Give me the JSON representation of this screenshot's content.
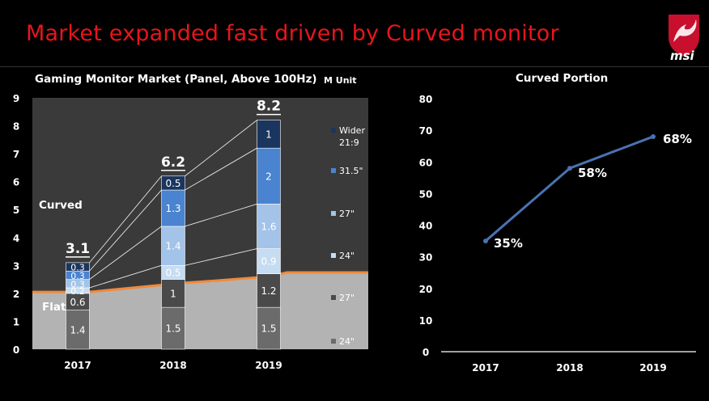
{
  "page": {
    "title": "Market expanded fast driven by Curved monitor",
    "logo_text": "msi"
  },
  "colors": {
    "title_red": "#e8151b",
    "plot_bg": "#3a3a3a",
    "flat_area": "#b3b3b3",
    "flat_line": "#f08a3c",
    "flat_24": "#6b6b6b",
    "flat_27": "#4a4a4a",
    "curved_24": "#c6dcf2",
    "curved_27": "#a3c3e8",
    "curved_315": "#4a83cf",
    "curved_wider": "#1a355e",
    "line_blue": "#4a72b0"
  },
  "chart_data": [
    {
      "type": "bar",
      "stacked": true,
      "title": "Gaming Monitor Market (Panel, Above 100Hz)",
      "unit": "M Unit",
      "categories": [
        "2017",
        "2018",
        "2019"
      ],
      "ylim": [
        0,
        9
      ],
      "yticks": [
        "0",
        "1",
        "2",
        "3",
        "4",
        "5",
        "6",
        "7",
        "8",
        "9"
      ],
      "series": [
        {
          "name": "24\"",
          "group": "Flat",
          "values": [
            1.4,
            1.5,
            1.5
          ],
          "color": "#6b6b6b"
        },
        {
          "name": "27\"",
          "group": "Flat",
          "values": [
            0.6,
            1,
            1.2
          ],
          "color": "#4a4a4a"
        },
        {
          "name": "24\"",
          "group": "Curved",
          "values": [
            0.2,
            0.5,
            0.9
          ],
          "color": "#c6dcf2"
        },
        {
          "name": "27\"",
          "group": "Curved",
          "values": [
            0.3,
            1.4,
            1.6
          ],
          "color": "#a3c3e8"
        },
        {
          "name": "31.5\"",
          "group": "Curved",
          "values": [
            0.3,
            1.3,
            2
          ],
          "color": "#4a83cf"
        },
        {
          "name": "Wider 21:9",
          "group": "Curved",
          "values": [
            0.3,
            0.5,
            1
          ],
          "color": "#1a355e"
        }
      ],
      "totals": [
        "3.1",
        "6.2",
        "8.2"
      ],
      "group_labels": [
        "Curved",
        "Flat"
      ],
      "legend_position": "right"
    },
    {
      "type": "line",
      "title": "Curved Portion",
      "categories": [
        "2017",
        "2018",
        "2019"
      ],
      "values": [
        35,
        58,
        68
      ],
      "data_labels": [
        "35%",
        "58%",
        "68%"
      ],
      "ylim": [
        0,
        80
      ],
      "yticks": [
        "0",
        "10",
        "20",
        "30",
        "40",
        "50",
        "60",
        "70",
        "80"
      ]
    }
  ]
}
